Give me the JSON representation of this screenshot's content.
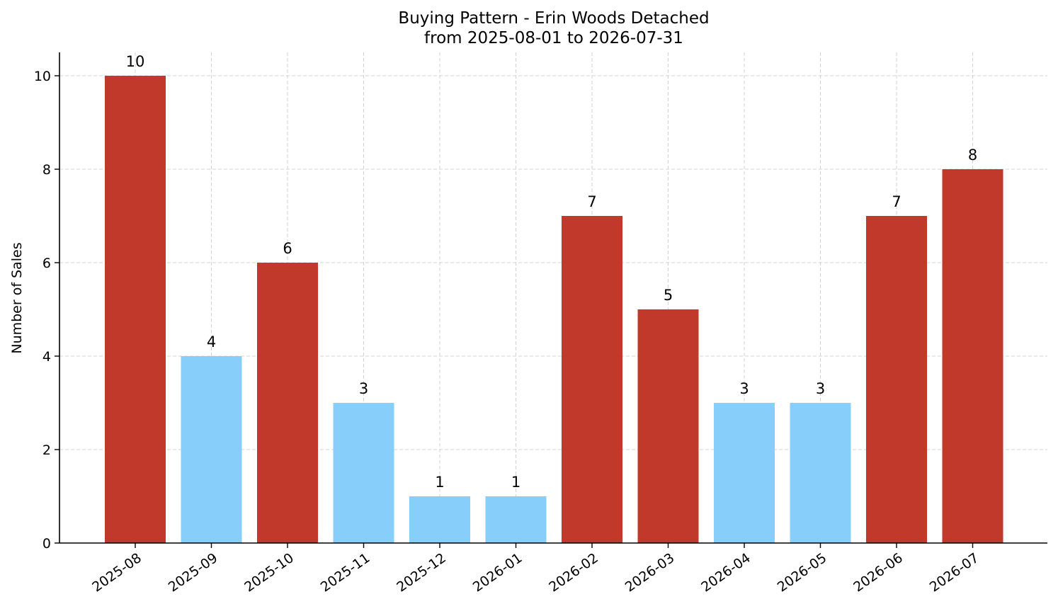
{
  "chart_data": {
    "type": "bar",
    "title": "Buying Pattern - Erin Woods Detached",
    "subtitle": "from 2025-08-01 to 2026-07-31",
    "xlabel": "",
    "ylabel": "Number of Sales",
    "categories": [
      "2025-08",
      "2025-09",
      "2025-10",
      "2025-11",
      "2025-12",
      "2026-01",
      "2026-02",
      "2026-03",
      "2026-04",
      "2026-05",
      "2026-06",
      "2026-07"
    ],
    "values": [
      10,
      4,
      6,
      3,
      1,
      1,
      7,
      5,
      3,
      3,
      7,
      8
    ],
    "bar_colors": [
      "#c0392b",
      "#87cefa",
      "#c0392b",
      "#87cefa",
      "#87cefa",
      "#87cefa",
      "#c0392b",
      "#c0392b",
      "#87cefa",
      "#87cefa",
      "#c0392b",
      "#c0392b"
    ],
    "ylim": [
      0,
      10.5
    ],
    "yticks": [
      0,
      2,
      4,
      6,
      8,
      10
    ],
    "grid": true,
    "grid_style": "dashed",
    "legend": "none",
    "x_tick_rotation_deg": 35,
    "data_labels": true
  }
}
